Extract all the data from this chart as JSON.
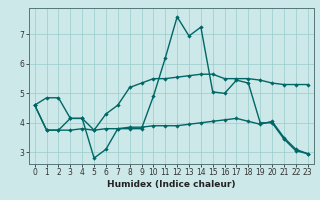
{
  "xlabel": "Humidex (Indice chaleur)",
  "bg_color": "#cce8e8",
  "grid_color": "#99cccc",
  "line_color": "#006666",
  "xlim": [
    -0.5,
    23.5
  ],
  "ylim": [
    2.6,
    7.9
  ],
  "yticks": [
    3,
    4,
    5,
    6,
    7
  ],
  "xticks": [
    0,
    1,
    2,
    3,
    4,
    5,
    6,
    7,
    8,
    9,
    10,
    11,
    12,
    13,
    14,
    15,
    16,
    17,
    18,
    19,
    20,
    21,
    22,
    23
  ],
  "line1_x": [
    0,
    1,
    2,
    3,
    4,
    5,
    6,
    7,
    8,
    9,
    10,
    11,
    12,
    13,
    14,
    15,
    16,
    17,
    18,
    19,
    20,
    21,
    22,
    23
  ],
  "line1_y": [
    4.6,
    4.85,
    4.85,
    4.15,
    4.15,
    3.75,
    4.3,
    4.6,
    5.2,
    5.35,
    5.5,
    5.5,
    5.55,
    5.6,
    5.65,
    5.65,
    5.5,
    5.5,
    5.5,
    5.45,
    5.35,
    5.3,
    5.3,
    5.3
  ],
  "line2_x": [
    0,
    1,
    2,
    3,
    4,
    5,
    6,
    7,
    8,
    9,
    10,
    11,
    12,
    13,
    14,
    15,
    16,
    17,
    18,
    19,
    20,
    21,
    22,
    23
  ],
  "line2_y": [
    4.6,
    3.75,
    3.75,
    4.15,
    4.15,
    2.8,
    3.1,
    3.8,
    3.8,
    3.8,
    4.9,
    6.2,
    7.6,
    6.95,
    7.25,
    5.05,
    5.0,
    5.45,
    5.35,
    4.0,
    4.0,
    3.45,
    3.05,
    2.95
  ],
  "line3_x": [
    0,
    1,
    2,
    3,
    4,
    5,
    6,
    7,
    8,
    9,
    10,
    11,
    12,
    13,
    14,
    15,
    16,
    17,
    18,
    19,
    20,
    21,
    22,
    23
  ],
  "line3_y": [
    4.6,
    3.75,
    3.75,
    3.75,
    3.8,
    3.75,
    3.8,
    3.8,
    3.85,
    3.85,
    3.9,
    3.9,
    3.9,
    3.95,
    4.0,
    4.05,
    4.1,
    4.15,
    4.05,
    3.95,
    4.05,
    3.5,
    3.1,
    2.95
  ],
  "xlabel_fontsize": 6.5,
  "tick_fontsize": 5.5,
  "linewidth": 1.0,
  "markersize": 2.2
}
